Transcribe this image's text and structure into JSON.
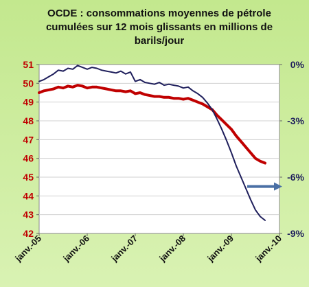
{
  "chart_data": {
    "type": "line",
    "title_lines": [
      "OCDE : consommations moyennes de pétrole",
      "cumulées sur 12 mois glissants en millions de",
      "barils/jour"
    ],
    "x_ticks": [
      "janv.-05",
      "janv.-06",
      "janv.-07",
      "janv.-08",
      "janv.-09",
      "janv.-10"
    ],
    "x_range": [
      2005.0,
      2010.0
    ],
    "y_left": {
      "range": [
        42,
        51
      ],
      "ticks": [
        "42",
        "43",
        "44",
        "45",
        "46",
        "47",
        "48",
        "49",
        "50",
        "51"
      ]
    },
    "y_right": {
      "range": [
        -9,
        0
      ],
      "ticks": [
        "0%",
        "-3%",
        "-6%",
        "-9%"
      ]
    },
    "series": [
      {
        "axis": "left",
        "color": "#c00000",
        "x": [
          2005.0,
          2005.1,
          2005.2,
          2005.3,
          2005.4,
          2005.5,
          2005.6,
          2005.7,
          2005.8,
          2005.9,
          2006.0,
          2006.1,
          2006.2,
          2006.3,
          2006.4,
          2006.5,
          2006.6,
          2006.7,
          2006.8,
          2006.9,
          2007.0,
          2007.1,
          2007.2,
          2007.3,
          2007.4,
          2007.5,
          2007.6,
          2007.7,
          2007.8,
          2007.9,
          2008.0,
          2008.1,
          2008.2,
          2008.3,
          2008.4,
          2008.5,
          2008.6,
          2008.7,
          2008.8,
          2008.9,
          2009.0,
          2009.1,
          2009.2,
          2009.3,
          2009.4,
          2009.5,
          2009.6,
          2009.7
        ],
        "values": [
          49.5,
          49.6,
          49.65,
          49.7,
          49.8,
          49.75,
          49.85,
          49.8,
          49.9,
          49.85,
          49.75,
          49.8,
          49.8,
          49.75,
          49.7,
          49.65,
          49.6,
          49.6,
          49.55,
          49.6,
          49.45,
          49.5,
          49.4,
          49.35,
          49.3,
          49.3,
          49.25,
          49.25,
          49.2,
          49.2,
          49.15,
          49.2,
          49.1,
          49.0,
          48.9,
          48.75,
          48.6,
          48.3,
          48.05,
          47.8,
          47.55,
          47.2,
          46.9,
          46.6,
          46.3,
          46.0,
          45.85,
          45.75
        ]
      },
      {
        "axis": "right",
        "color": "#1f1f5c",
        "x": [
          2005.0,
          2005.1,
          2005.2,
          2005.3,
          2005.4,
          2005.5,
          2005.6,
          2005.7,
          2005.8,
          2005.9,
          2006.0,
          2006.1,
          2006.2,
          2006.3,
          2006.4,
          2006.5,
          2006.6,
          2006.7,
          2006.8,
          2006.9,
          2007.0,
          2007.1,
          2007.2,
          2007.3,
          2007.4,
          2007.5,
          2007.6,
          2007.7,
          2007.8,
          2007.9,
          2008.0,
          2008.1,
          2008.2,
          2008.3,
          2008.4,
          2008.5,
          2008.6,
          2008.7,
          2008.8,
          2008.9,
          2009.0,
          2009.1,
          2009.2,
          2009.3,
          2009.4,
          2009.5,
          2009.6,
          2009.7
        ],
        "values": [
          -0.9,
          -0.8,
          -0.65,
          -0.5,
          -0.3,
          -0.35,
          -0.2,
          -0.25,
          -0.05,
          -0.15,
          -0.25,
          -0.15,
          -0.2,
          -0.3,
          -0.35,
          -0.4,
          -0.45,
          -0.35,
          -0.5,
          -0.4,
          -0.9,
          -0.8,
          -0.95,
          -1.0,
          -1.05,
          -0.95,
          -1.1,
          -1.05,
          -1.1,
          -1.15,
          -1.25,
          -1.2,
          -1.4,
          -1.55,
          -1.75,
          -2.05,
          -2.4,
          -2.9,
          -3.45,
          -4.05,
          -4.7,
          -5.4,
          -6.0,
          -6.6,
          -7.2,
          -7.75,
          -8.1,
          -8.3
        ]
      }
    ],
    "annotation": {
      "type": "arrow",
      "color": "#4a6fa5",
      "direction": "right",
      "y_right": -6.5
    }
  }
}
